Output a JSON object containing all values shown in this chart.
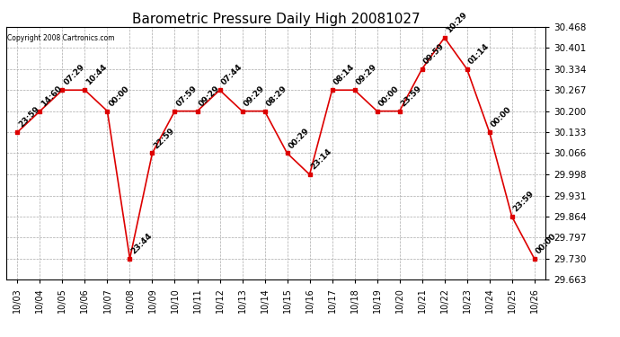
{
  "title": "Barometric Pressure Daily High 20081027",
  "copyright": "Copyright 2008 Cartronics.com",
  "x_labels": [
    "10/03",
    "10/04",
    "10/05",
    "10/06",
    "10/07",
    "10/08",
    "10/09",
    "10/10",
    "10/11",
    "10/12",
    "10/13",
    "10/14",
    "10/15",
    "10/16",
    "10/17",
    "10/18",
    "10/19",
    "10/20",
    "10/21",
    "10/22",
    "10/23",
    "10/24",
    "10/25",
    "10/26"
  ],
  "y_values": [
    30.133,
    30.2,
    30.267,
    30.267,
    30.2,
    29.73,
    30.066,
    30.2,
    30.2,
    30.267,
    30.2,
    30.2,
    30.066,
    29.998,
    30.267,
    30.267,
    30.2,
    30.2,
    30.334,
    30.434,
    30.334,
    30.133,
    29.864,
    29.73
  ],
  "annotations": [
    "23:59",
    "14:60",
    "07:29",
    "10:44",
    "00:00",
    "23:44",
    "22:59",
    "07:59",
    "09:29",
    "07:44",
    "09:29",
    "08:29",
    "00:29",
    "23:14",
    "08:14",
    "09:29",
    "00:00",
    "23:59",
    "09:59",
    "10:29",
    "01:14",
    "00:00",
    "23:59",
    "00:00"
  ],
  "ylim_min": 29.663,
  "ylim_max": 30.468,
  "yticks": [
    29.663,
    29.73,
    29.797,
    29.864,
    29.931,
    29.998,
    30.066,
    30.133,
    30.2,
    30.267,
    30.334,
    30.401,
    30.468
  ],
  "line_color": "#dd0000",
  "marker_color": "#dd0000",
  "bg_color": "#ffffff",
  "grid_color": "#aaaaaa",
  "title_fontsize": 11,
  "annotation_fontsize": 6.5,
  "xlabel_fontsize": 7,
  "ylabel_fontsize": 7.5
}
